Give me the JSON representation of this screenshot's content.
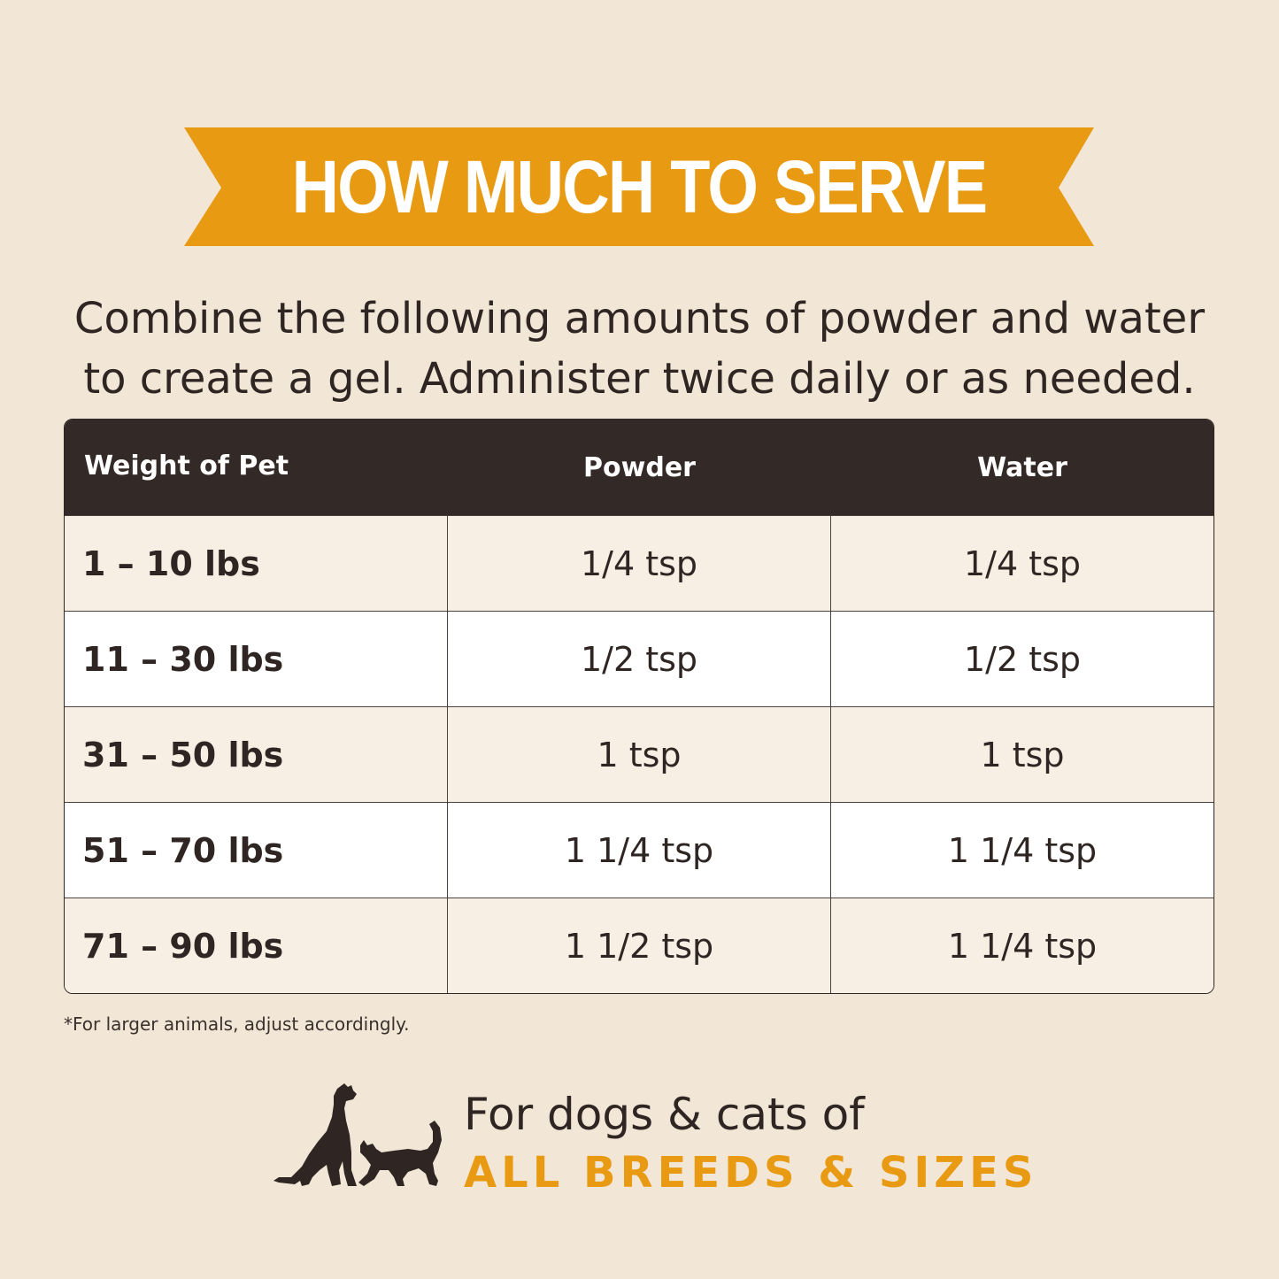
{
  "colors": {
    "background": "#f2e6d6",
    "banner": "#e89a12",
    "header": "#332926",
    "text": "#2f2623",
    "accent": "#e89a12"
  },
  "banner": {
    "title": "HOW MUCH TO SERVE"
  },
  "intro": {
    "line1": "Combine the following amounts of powder and water",
    "line2": "to create a gel. Administer twice daily or as needed."
  },
  "table": {
    "headers": [
      "Weight of Pet",
      "Powder",
      "Water"
    ],
    "rows": [
      [
        "1 – 10 lbs",
        "1/4 tsp",
        "1/4 tsp"
      ],
      [
        "11 – 30 lbs",
        "1/2 tsp",
        "1/2 tsp"
      ],
      [
        "31 – 50 lbs",
        "1 tsp",
        "1 tsp"
      ],
      [
        "51 – 70 lbs",
        "1 1/4 tsp",
        "1 1/4 tsp"
      ],
      [
        "71 – 90 lbs",
        "1 1/2 tsp",
        "1 1/4 tsp"
      ]
    ]
  },
  "footnote": "*For larger animals, adjust accordingly.",
  "bottom": {
    "icon": "dog-and-cat-icon",
    "line1": "For dogs & cats of",
    "line2": "ALL BREEDS & SIZES"
  }
}
